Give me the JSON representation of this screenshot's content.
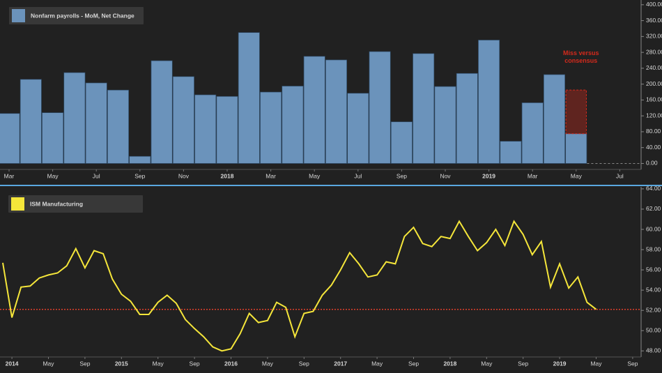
{
  "chart_data": [
    {
      "type": "bar",
      "categories": [
        "Mar",
        null,
        "May",
        null,
        "Jul",
        null,
        "Sep",
        null,
        "Nov",
        null,
        "2018",
        null,
        "Mar",
        null,
        "May",
        null,
        "Jul",
        null,
        "Sep",
        null,
        "Nov",
        null,
        "2019",
        null,
        "Mar",
        null,
        "May",
        null,
        "Jul"
      ],
      "series": [
        {
          "name": "Nonfarm payrolls - MoM, Net Change",
          "color": "#6b93bb",
          "values": [
            126,
            212,
            128,
            229,
            203,
            185,
            18,
            259,
            219,
            173,
            169,
            330,
            180,
            195,
            270,
            261,
            177,
            282,
            105,
            277,
            194,
            227,
            311,
            56,
            153,
            224,
            75,
            null,
            null
          ]
        }
      ],
      "ylim": [
        -15,
        412
      ],
      "yticks": [
        {
          "value": 0,
          "label": "0.00"
        },
        {
          "value": 40,
          "label": "40.00"
        },
        {
          "value": 80,
          "label": "80.00"
        },
        {
          "value": 120,
          "label": "120.00"
        },
        {
          "value": 160,
          "label": "160.00"
        },
        {
          "value": 200,
          "label": "200.00"
        },
        {
          "value": 240,
          "label": "240.00"
        },
        {
          "value": 280,
          "label": "280.00"
        },
        {
          "value": 320,
          "label": "320.00"
        },
        {
          "value": 360,
          "label": "360.00"
        },
        {
          "value": 400,
          "label": "400.00"
        }
      ],
      "annotation": {
        "text": "Miss versus consensus",
        "range": [
          75,
          185
        ],
        "color": "#d42a1c"
      }
    },
    {
      "type": "line",
      "categories": [
        null,
        "2014",
        null,
        null,
        null,
        "May",
        null,
        null,
        null,
        "Sep",
        null,
        null,
        null,
        "2015",
        null,
        null,
        null,
        "May",
        null,
        null,
        null,
        "Sep",
        null,
        null,
        null,
        "2016",
        null,
        null,
        null,
        "May",
        null,
        null,
        null,
        "Sep",
        null,
        null,
        null,
        "2017",
        null,
        null,
        null,
        "May",
        null,
        null,
        null,
        "Sep",
        null,
        null,
        null,
        "2018",
        null,
        null,
        null,
        "May",
        null,
        null,
        null,
        "Sep",
        null,
        null,
        null,
        "2019",
        null,
        null,
        null,
        "May",
        null,
        null,
        null,
        "Sep"
      ],
      "series": [
        {
          "name": "ISM Manufacturing",
          "color": "#f5e63a",
          "values": [
            56.7,
            51.3,
            54.3,
            54.4,
            55.2,
            55.5,
            55.7,
            56.4,
            58.1,
            56.2,
            57.9,
            57.6,
            55.1,
            53.6,
            52.9,
            51.6,
            51.6,
            52.8,
            53.5,
            52.7,
            51.1,
            50.2,
            49.4,
            48.4,
            48.0,
            48.2,
            49.7,
            51.7,
            50.8,
            51.0,
            52.8,
            52.3,
            49.4,
            51.7,
            51.9,
            53.5,
            54.5,
            56.0,
            57.7,
            56.6,
            55.3,
            55.5,
            56.8,
            56.6,
            59.3,
            60.2,
            58.6,
            58.3,
            59.3,
            59.1,
            60.8,
            59.3,
            57.9,
            58.7,
            60.0,
            58.4,
            60.8,
            59.5,
            57.5,
            58.8,
            54.3,
            56.6,
            54.2,
            55.3,
            52.8,
            52.1,
            null,
            null,
            null,
            null
          ]
        }
      ],
      "ylim": [
        47.4,
        64.2
      ],
      "yticks": [
        {
          "value": 48,
          "label": "48.00"
        },
        {
          "value": 50,
          "label": "50.00"
        },
        {
          "value": 52,
          "label": "52.00"
        },
        {
          "value": 54,
          "label": "54.00"
        },
        {
          "value": 56,
          "label": "56.00"
        },
        {
          "value": 58,
          "label": "58.00"
        },
        {
          "value": 60,
          "label": "60.00"
        },
        {
          "value": 62,
          "label": "62.00"
        },
        {
          "value": 64,
          "label": "64.00"
        }
      ],
      "reference_line": {
        "value": 52.1,
        "color": "#e0402a"
      }
    }
  ]
}
